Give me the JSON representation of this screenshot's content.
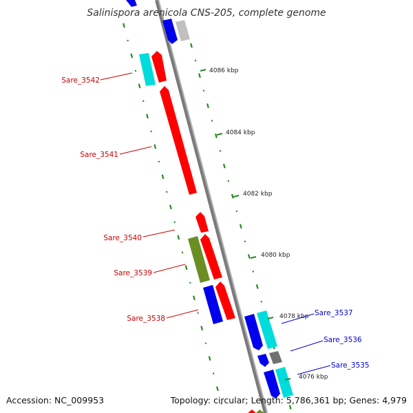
{
  "title": "Salinispora arenicola CNS-205, complete genome",
  "accession": "Accession: NC_009953",
  "summary": "Topology: circular; Length: 5,786,361 bp; Genes: 4,979",
  "scale_labels": [
    "4086 kbp",
    "4084 kbp",
    "4082 kbp",
    "4080 kbp",
    "4078 kbp",
    "4076 kbp"
  ],
  "gene_labels": [
    {
      "name": "Sare_3542",
      "strand": "reverse"
    },
    {
      "name": "Sare_3541",
      "strand": "reverse"
    },
    {
      "name": "Sare_3540",
      "strand": "reverse"
    },
    {
      "name": "Sare_3539",
      "strand": "reverse"
    },
    {
      "name": "Sare_3538",
      "strand": "reverse"
    },
    {
      "name": "Sare_3537",
      "strand": "forward"
    },
    {
      "name": "Sare_3536",
      "strand": "forward"
    },
    {
      "name": "Sare_3535",
      "strand": "forward"
    }
  ],
  "colors": {
    "backbone": "#808080",
    "reverse_label": "#cc0000",
    "forward_label": "#0000cc",
    "tick": "#228b22",
    "red": "#ff0000",
    "blue": "#0000ee",
    "cyan": "#00dcdc",
    "olive": "#6b8e23",
    "gray": "#707070",
    "light_gray": "#c0c0c0"
  }
}
